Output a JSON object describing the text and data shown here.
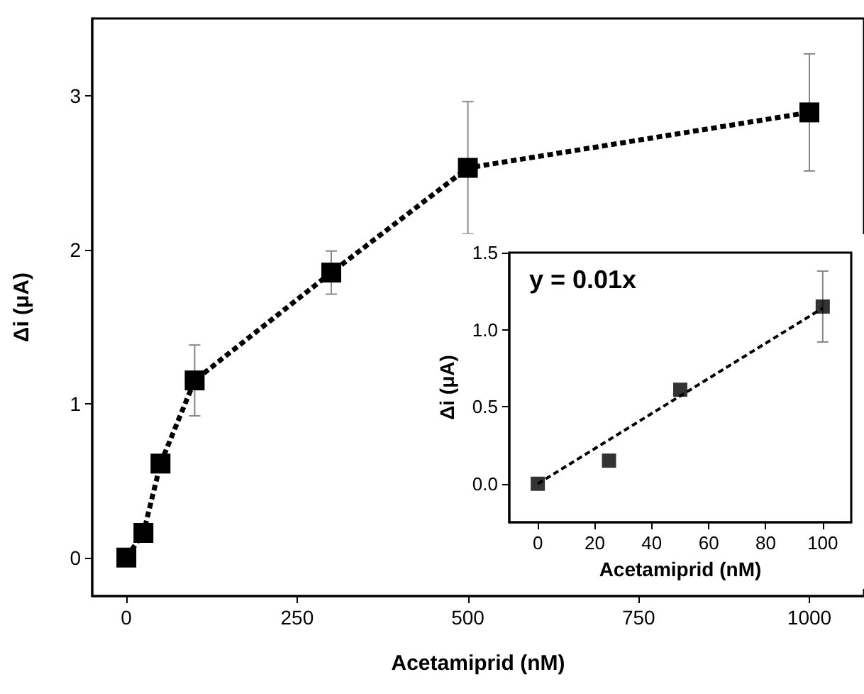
{
  "chart_data": [
    {
      "type": "line",
      "xlabel": "Acetamiprid (nM)",
      "ylabel": "Δi (μA)",
      "xlim": [
        -50,
        1080
      ],
      "ylim": [
        -0.25,
        3.5
      ],
      "xticks": [
        0,
        250,
        500,
        750,
        1000
      ],
      "yticks": [
        0,
        1,
        2,
        3
      ],
      "marker": "square",
      "line_style": "dashed",
      "series": [
        {
          "color": "#000000",
          "x": [
            0,
            25,
            50,
            100,
            300,
            500,
            1000
          ],
          "values": [
            0,
            0.16,
            0.61,
            1.15,
            1.85,
            2.53,
            2.89
          ],
          "errors": [
            null,
            null,
            null,
            0.23,
            0.14,
            0.43,
            0.38
          ]
        }
      ]
    },
    {
      "type": "scatter",
      "xlabel": "Acetamiprid (nM)",
      "ylabel": "Δi (μA)",
      "xlim": [
        -10,
        110
      ],
      "ylim": [
        -0.25,
        1.5
      ],
      "xticks": [
        0,
        20,
        40,
        60,
        80,
        100
      ],
      "yticks": [
        {
          "value": 0,
          "label": "0.0"
        },
        {
          "value": 0.5,
          "label": "0.5"
        },
        {
          "value": 1,
          "label": "1.0"
        },
        {
          "value": 1.5,
          "label": "1.5"
        }
      ],
      "marker": "square",
      "annotations": [
        "y = 0.01x"
      ],
      "series": [
        {
          "color": "#000000",
          "x": [
            0,
            25,
            50,
            100
          ],
          "values": [
            0,
            0.15,
            0.61,
            1.15
          ],
          "errors": [
            null,
            null,
            null,
            0.23
          ]
        },
        {
          "type": "line",
          "color": "#000000",
          "x": [
            0,
            100
          ],
          "values": [
            0,
            1.14
          ],
          "marker": "none",
          "line_style": "dashed"
        }
      ]
    }
  ]
}
